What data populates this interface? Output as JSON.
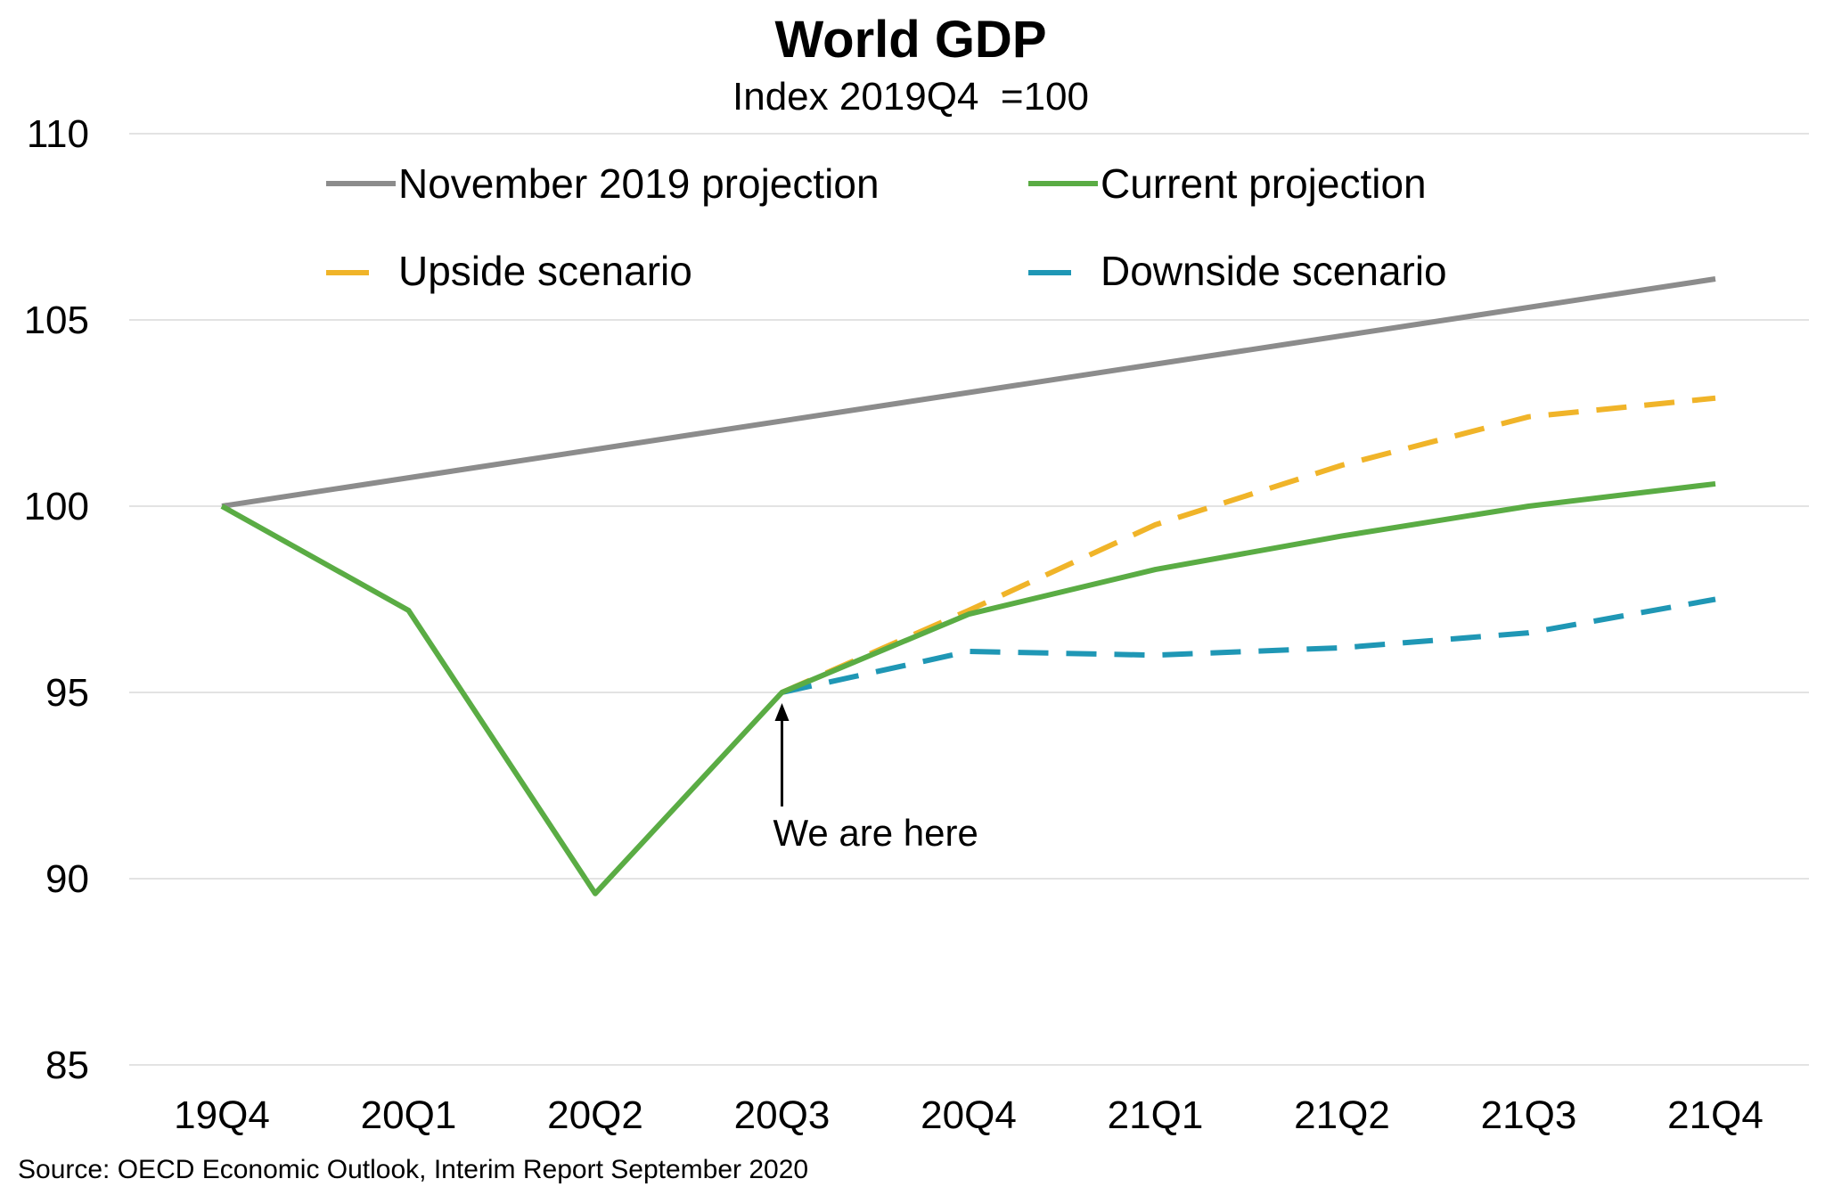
{
  "chart_data": {
    "type": "line",
    "title": "World GDP",
    "subtitle": "Index 2019Q4  =100",
    "xlabel": "",
    "ylabel": "",
    "categories": [
      "19Q4",
      "20Q1",
      "20Q2",
      "20Q3",
      "20Q4",
      "21Q1",
      "21Q2",
      "21Q3",
      "21Q4"
    ],
    "ylim": [
      85,
      110
    ],
    "yticks": [
      "85",
      "90",
      "95",
      "100",
      "105",
      "110"
    ],
    "grid": true,
    "legend_position": "top",
    "series": [
      {
        "name": "November 2019 projection",
        "style": "solid",
        "color": "#8c8c8c",
        "x": [
          "19Q4",
          "21Q4"
        ],
        "values": [
          100,
          106.1
        ]
      },
      {
        "name": "Current projection",
        "style": "solid",
        "color": "#5aac44",
        "x": [
          "19Q4",
          "20Q1",
          "20Q2",
          "20Q3",
          "20Q4",
          "21Q1",
          "21Q2",
          "21Q3",
          "21Q4"
        ],
        "values": [
          100,
          97.2,
          89.6,
          95.0,
          97.1,
          98.3,
          99.2,
          100.0,
          100.6
        ]
      },
      {
        "name": "Upside scenario",
        "style": "dashed",
        "color": "#f0b429",
        "x": [
          "20Q3",
          "20Q4",
          "21Q1",
          "21Q2",
          "21Q3",
          "21Q4"
        ],
        "values": [
          95.0,
          97.2,
          99.5,
          101.1,
          102.4,
          102.9
        ]
      },
      {
        "name": "Downside scenario",
        "style": "dashed",
        "color": "#1f97b5",
        "x": [
          "20Q3",
          "20Q4",
          "21Q1",
          "21Q2",
          "21Q3",
          "21Q4"
        ],
        "values": [
          95.0,
          96.1,
          96.0,
          96.2,
          96.6,
          97.5
        ]
      }
    ],
    "annotation": {
      "text": "We are here",
      "x": "20Q3",
      "y": 95.0
    },
    "source": "Source: OECD Economic Outlook, Interim Report September 2020"
  }
}
